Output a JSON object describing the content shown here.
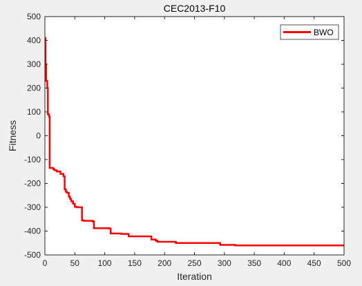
{
  "chart_data": {
    "type": "line",
    "title": "CEC2013-F10",
    "xlabel": "Iteration",
    "ylabel": "Fitness",
    "xlim": [
      0,
      500
    ],
    "ylim": [
      -500,
      500
    ],
    "xticks": [
      0,
      50,
      100,
      150,
      200,
      250,
      300,
      350,
      400,
      450,
      500
    ],
    "yticks": [
      -500,
      -400,
      -300,
      -200,
      -100,
      0,
      100,
      200,
      300,
      400,
      500
    ],
    "grid": false,
    "legend_position": "top-right",
    "series": [
      {
        "name": "BWO",
        "color": "#ff0000",
        "x": [
          0,
          1,
          1,
          2,
          2,
          4,
          4,
          5,
          5,
          7,
          7,
          8,
          8,
          14,
          14,
          16,
          16,
          20,
          20,
          26,
          26,
          31,
          31,
          33,
          33,
          35,
          35,
          37,
          37,
          40,
          40,
          42,
          42,
          44,
          44,
          47,
          47,
          50,
          50,
          53,
          53,
          62,
          62,
          65,
          65,
          80,
          80,
          82,
          82,
          108,
          108,
          110,
          110,
          128,
          128,
          140,
          140,
          178,
          178,
          185,
          185,
          188,
          188,
          219,
          219,
          293,
          293,
          318,
          318,
          500
        ],
        "y": [
          410,
          410,
          300,
          300,
          230,
          230,
          200,
          200,
          90,
          90,
          80,
          80,
          -135,
          -135,
          -140,
          -140,
          -145,
          -145,
          -150,
          -150,
          -160,
          -160,
          -170,
          -170,
          -225,
          -225,
          -235,
          -235,
          -240,
          -240,
          -255,
          -255,
          -265,
          -265,
          -275,
          -275,
          -285,
          -285,
          -298,
          -298,
          -300,
          -300,
          -355,
          -355,
          -357,
          -357,
          -360,
          -360,
          -388,
          -388,
          -390,
          -390,
          -410,
          -410,
          -412,
          -412,
          -422,
          -422,
          -435,
          -435,
          -440,
          -440,
          -445,
          -445,
          -450,
          -450,
          -458,
          -458,
          -460,
          -460
        ]
      }
    ]
  }
}
